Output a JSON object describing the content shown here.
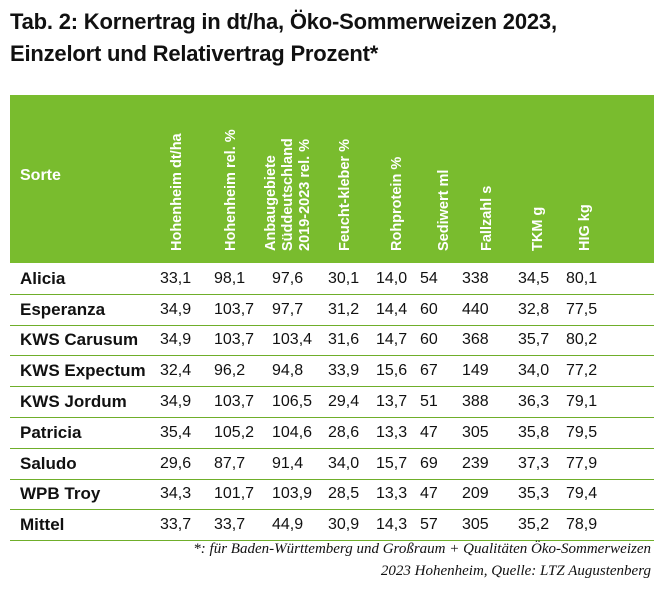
{
  "title": {
    "line1": "Tab. 2: Kornertrag in dt/ha, Öko-Sommerweizen 2023,",
    "line2": "Einzelort und Relativertrag Prozent*"
  },
  "header": {
    "sorte": "Sorte",
    "columns": [
      {
        "lines": [
          "Hohenheim dt/ha"
        ]
      },
      {
        "lines": [
          "Hohenheim rel. %"
        ]
      },
      {
        "lines": [
          "Anbaugebiete",
          "Süddeutschland",
          "2019-2023 rel. %"
        ]
      },
      {
        "lines": [
          "Feucht-kleber %"
        ]
      },
      {
        "lines": [
          "Rohprotein %"
        ]
      },
      {
        "lines": [
          "Sediwert ml"
        ]
      },
      {
        "lines": [
          "Fallzahl s"
        ]
      },
      {
        "lines": [
          "TKM g"
        ]
      },
      {
        "lines": [
          "HIG kg"
        ]
      }
    ],
    "background_color": "#79bc2e"
  },
  "rows": [
    {
      "name": "Alicia",
      "values": [
        "33,1",
        "98,1",
        "97,6",
        "30,1",
        "14,0",
        "54",
        "338",
        "34,5",
        "80,1"
      ]
    },
    {
      "name": "Esperanza",
      "values": [
        "34,9",
        "103,7",
        "97,7",
        "31,2",
        "14,4",
        "60",
        "440",
        "32,8",
        "77,5"
      ]
    },
    {
      "name": "KWS Carusum",
      "values": [
        "34,9",
        "103,7",
        "103,4",
        "31,6",
        "14,7",
        "60",
        "368",
        "35,7",
        "80,2"
      ]
    },
    {
      "name": "KWS Expectum",
      "values": [
        "32,4",
        "96,2",
        "94,8",
        "33,9",
        "15,6",
        "67",
        "149",
        "34,0",
        "77,2"
      ]
    },
    {
      "name": "KWS Jordum",
      "values": [
        "34,9",
        "103,7",
        "106,5",
        "29,4",
        "13,7",
        "51",
        "388",
        "36,3",
        "79,1"
      ]
    },
    {
      "name": "Patricia",
      "values": [
        "35,4",
        "105,2",
        "104,6",
        "28,6",
        "13,3",
        "47",
        "305",
        "35,8",
        "79,5"
      ]
    },
    {
      "name": "Saludo",
      "values": [
        "29,6",
        "87,7",
        "91,4",
        "34,0",
        "15,7",
        "69",
        "239",
        "37,3",
        "77,9"
      ]
    },
    {
      "name": "WPB Troy",
      "values": [
        "34,3",
        "101,7",
        "103,9",
        "28,5",
        "13,3",
        "47",
        "209",
        "35,3",
        "79,4"
      ]
    },
    {
      "name": "Mittel",
      "values": [
        "33,7",
        "33,7",
        "44,9",
        "30,9",
        "14,3",
        "57",
        "305",
        "35,2",
        "78,9"
      ]
    }
  ],
  "footnote": {
    "line1": "*: für Baden-Württemberg und Großraum + Qualitäten Öko-Sommerweizen",
    "line2": "2023 Hohenheim, Quelle: LTZ Augustenberg"
  }
}
